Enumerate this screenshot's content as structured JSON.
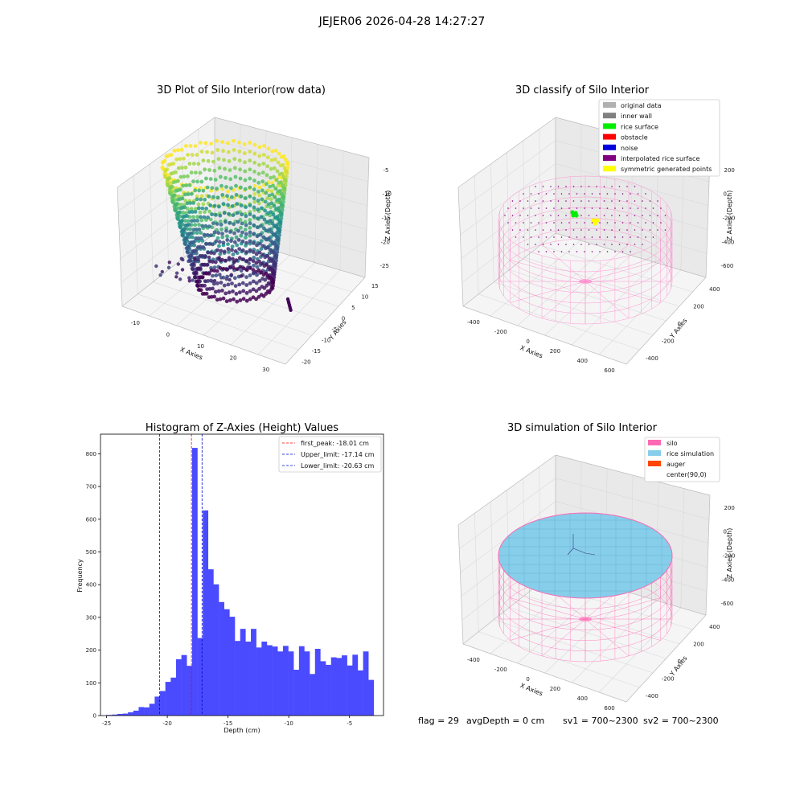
{
  "figure": {
    "suptitle": "JEJER06 2026-04-28 14:27:27"
  },
  "raw_plot": {
    "title": "3D Plot of Silo Interior(row data)",
    "xlabel": "X Axies",
    "ylabel": "Y Axies",
    "zlabel": "Z Axies (Depth)",
    "x_ticks": [
      "-10",
      "0",
      "10",
      "20",
      "30"
    ],
    "y_ticks": [
      "15",
      "10",
      "5",
      "0",
      "-5",
      "-10",
      "-15",
      "-20"
    ],
    "z_ticks": [
      "-5",
      "-10",
      "-15",
      "-20",
      "-25"
    ],
    "colormap": "viridis"
  },
  "classify_plot": {
    "title": "3D classify of Silo Interior",
    "xlabel": "X Axies",
    "ylabel": "Y Axies",
    "zlabel": "Z Axies (Depth)",
    "x_ticks": [
      "-400",
      "-200",
      "0",
      "200",
      "400",
      "600"
    ],
    "y_ticks": [
      "400",
      "200",
      "0",
      "-200",
      "-400"
    ],
    "z_ticks": [
      "200",
      "0",
      "-200",
      "-400",
      "-600"
    ],
    "legend": [
      {
        "label": "original data",
        "color": "#b0b0b0"
      },
      {
        "label": "inner wall",
        "color": "#808080"
      },
      {
        "label": "rice surface",
        "color": "#00ee00"
      },
      {
        "label": "obstacle",
        "color": "#ff0000"
      },
      {
        "label": "noise",
        "color": "#0000dd"
      },
      {
        "label": "interpolated rice surface",
        "color": "#800080"
      },
      {
        "label": "symmetric generated points",
        "color": "#ffff00"
      }
    ],
    "wire_color": "#ff80c8"
  },
  "chart_data": {
    "type": "bar",
    "title": "Histogram of Z-Axies (Height) Values",
    "xlabel": "Depth (cm)",
    "ylabel": "Frequency",
    "xlim": [
      -25.5,
      -2.2
    ],
    "ylim": [
      0,
      860
    ],
    "x_ticks": [
      -25,
      -20,
      -15,
      -10,
      -5
    ],
    "y_ticks": [
      0,
      100,
      200,
      300,
      400,
      500,
      600,
      700,
      800
    ],
    "bar_color": "#4a4aff",
    "bin_width": 0.44,
    "bins": [
      {
        "x": -25.0,
        "v": 2
      },
      {
        "x": -24.56,
        "v": 3
      },
      {
        "x": -24.12,
        "v": 5
      },
      {
        "x": -23.68,
        "v": 6
      },
      {
        "x": -23.24,
        "v": 10
      },
      {
        "x": -22.8,
        "v": 15
      },
      {
        "x": -22.36,
        "v": 26
      },
      {
        "x": -21.92,
        "v": 25
      },
      {
        "x": -21.48,
        "v": 36
      },
      {
        "x": -21.04,
        "v": 58
      },
      {
        "x": -20.6,
        "v": 75
      },
      {
        "x": -20.16,
        "v": 103
      },
      {
        "x": -19.72,
        "v": 116
      },
      {
        "x": -19.28,
        "v": 172
      },
      {
        "x": -18.84,
        "v": 185
      },
      {
        "x": -18.4,
        "v": 152
      },
      {
        "x": -17.96,
        "v": 818
      },
      {
        "x": -17.52,
        "v": 237
      },
      {
        "x": -17.08,
        "v": 627
      },
      {
        "x": -16.64,
        "v": 447
      },
      {
        "x": -16.2,
        "v": 401
      },
      {
        "x": -15.76,
        "v": 347
      },
      {
        "x": -15.32,
        "v": 325
      },
      {
        "x": -14.88,
        "v": 302
      },
      {
        "x": -14.44,
        "v": 228
      },
      {
        "x": -14.0,
        "v": 265
      },
      {
        "x": -13.56,
        "v": 226
      },
      {
        "x": -13.12,
        "v": 265
      },
      {
        "x": -12.68,
        "v": 208
      },
      {
        "x": -12.24,
        "v": 226
      },
      {
        "x": -11.8,
        "v": 215
      },
      {
        "x": -11.36,
        "v": 211
      },
      {
        "x": -10.92,
        "v": 196
      },
      {
        "x": -10.48,
        "v": 213
      },
      {
        "x": -10.04,
        "v": 196
      },
      {
        "x": -9.6,
        "v": 140
      },
      {
        "x": -9.16,
        "v": 212
      },
      {
        "x": -8.72,
        "v": 196
      },
      {
        "x": -8.28,
        "v": 127
      },
      {
        "x": -7.84,
        "v": 204
      },
      {
        "x": -7.4,
        "v": 166
      },
      {
        "x": -6.96,
        "v": 155
      },
      {
        "x": -6.52,
        "v": 178
      },
      {
        "x": -6.08,
        "v": 176
      },
      {
        "x": -5.64,
        "v": 184
      },
      {
        "x": -5.2,
        "v": 153
      },
      {
        "x": -4.76,
        "v": 186
      },
      {
        "x": -4.32,
        "v": 138
      },
      {
        "x": -3.88,
        "v": 196
      },
      {
        "x": -3.44,
        "v": 109
      }
    ],
    "lines": [
      {
        "label": "first_peak: -18.01 cm",
        "value": -18.01,
        "color": "#ff0000"
      },
      {
        "label": "Upper_limit: -17.14 cm",
        "value": -17.14,
        "color": "#0000cc"
      },
      {
        "label": "Lower_limit: -20.63 cm",
        "value": -20.63,
        "color": "#0000cc"
      }
    ],
    "legend_position": "top-right"
  },
  "simulation_plot": {
    "title": "3D simulation of Silo Interior",
    "xlabel": "X Axies",
    "ylabel": "Y Axies",
    "zlabel": "Z Axies (Depth)",
    "x_ticks": [
      "-400",
      "-200",
      "0",
      "200",
      "400",
      "600"
    ],
    "y_ticks": [
      "400",
      "200",
      "0",
      "-200",
      "-400"
    ],
    "z_ticks": [
      "200",
      "0",
      "-200",
      "-400",
      "-600"
    ],
    "legend": [
      {
        "label": "silo",
        "color": "#ff69b4"
      },
      {
        "label": "rice simulation",
        "color": "#87ceeb"
      },
      {
        "label": "auger",
        "color": "#ff4500"
      },
      {
        "label": "center(90,0)",
        "color": ""
      }
    ]
  },
  "info": {
    "flag": "flag = 29",
    "avg_depth": "avgDepth = 0 cm",
    "sv1": "sv1 = 700~2300",
    "sv2": "sv2 = 700~2300"
  }
}
